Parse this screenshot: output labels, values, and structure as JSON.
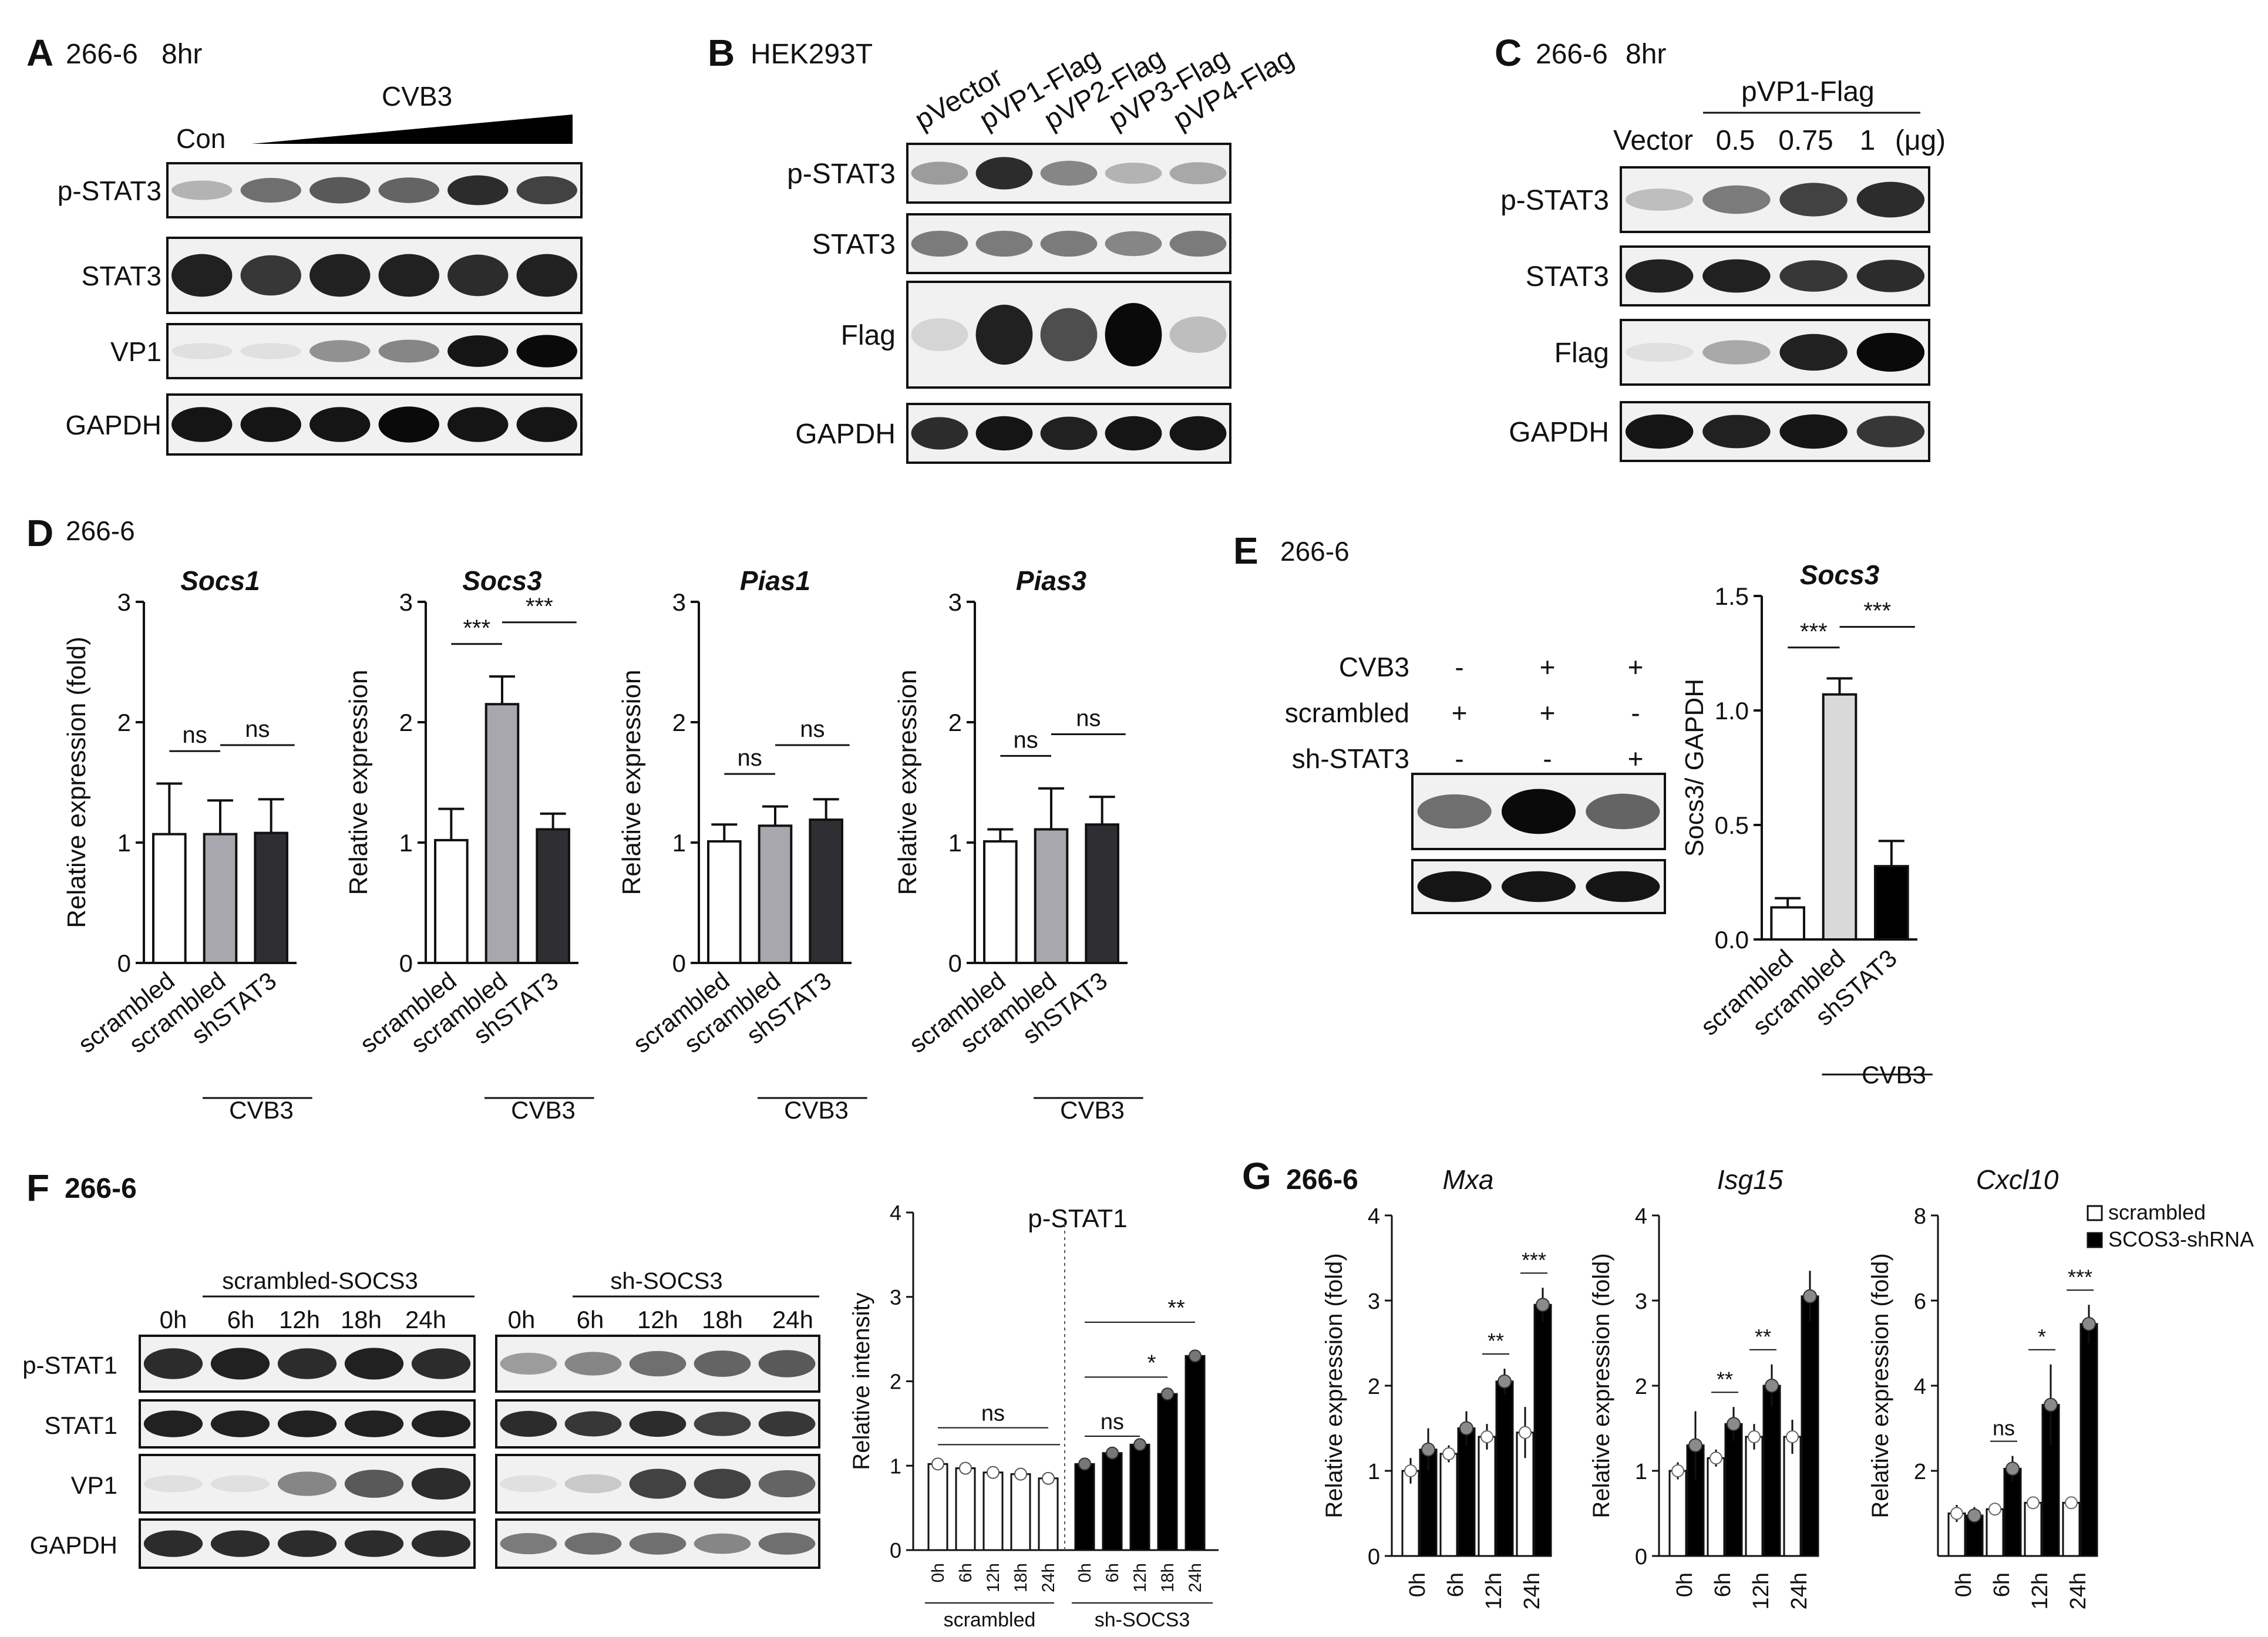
{
  "panelA": {
    "letter": "A",
    "cell": "266-6",
    "time": "8hr",
    "virus": "CVB3",
    "con": "Con",
    "rows": [
      "p-STAT3",
      "STAT3",
      "VP1",
      "GAPDH"
    ],
    "bands": [
      [
        0.25,
        0.55,
        0.65,
        0.6,
        0.85,
        0.75
      ],
      [
        0.9,
        0.8,
        0.9,
        0.9,
        0.85,
        0.9
      ],
      [
        0.05,
        0.05,
        0.4,
        0.45,
        0.95,
        1.0
      ],
      [
        0.95,
        0.95,
        0.95,
        1.0,
        0.95,
        0.95
      ]
    ]
  },
  "panelB": {
    "letter": "B",
    "cell": "HEK293T",
    "lanes": [
      "pVector",
      "pVP1-Flag",
      "pVP2-Flag",
      "pVP3-Flag",
      "pVP4-Flag"
    ],
    "rows": [
      "p-STAT3",
      "STAT3",
      "Flag",
      "GAPDH"
    ],
    "bands": [
      [
        0.35,
        0.85,
        0.45,
        0.25,
        0.3
      ],
      [
        0.5,
        0.5,
        0.5,
        0.45,
        0.5
      ],
      [
        0.1,
        0.9,
        0.7,
        1.0,
        0.2
      ],
      [
        0.85,
        0.95,
        0.9,
        0.95,
        0.95
      ]
    ]
  },
  "panelC": {
    "letter": "C",
    "cell": "266-6",
    "time": "8hr",
    "group": "pVP1-Flag",
    "lanes": [
      "Vector",
      "0.5",
      "0.75",
      "1",
      "(μg)"
    ],
    "rows": [
      "p-STAT3",
      "STAT3",
      "Flag",
      "GAPDH"
    ],
    "bands": [
      [
        0.2,
        0.5,
        0.75,
        0.85
      ],
      [
        0.9,
        0.9,
        0.8,
        0.85
      ],
      [
        0.05,
        0.3,
        0.9,
        1.0
      ],
      [
        0.95,
        0.9,
        0.95,
        0.8
      ]
    ]
  },
  "panelD": {
    "letter": "D",
    "cell": "266-6",
    "groups": [
      "scrambled",
      "scrambled",
      "shSTAT3"
    ],
    "cvb3": "CVB3",
    "charts": [
      {
        "title": "Socs1",
        "ylabel": "Relative expression (fold)",
        "values": [
          1.07,
          1.07,
          1.08
        ],
        "errors": [
          0.42,
          0.28,
          0.28
        ],
        "ylim": [
          0,
          3
        ],
        "yticks": [
          "0",
          "1",
          "2",
          "3"
        ],
        "sig": [
          "ns",
          "ns"
        ]
      },
      {
        "title": "Socs3",
        "ylabel": "Relative expression",
        "values": [
          1.02,
          2.15,
          1.11
        ],
        "errors": [
          0.26,
          0.23,
          0.13
        ],
        "ylim": [
          0,
          3
        ],
        "yticks": [
          "0",
          "1",
          "2",
          "3"
        ],
        "sig": [
          "***",
          "***"
        ]
      },
      {
        "title": "Pias1",
        "ylabel": "Relative expression",
        "values": [
          1.01,
          1.14,
          1.19
        ],
        "errors": [
          0.14,
          0.16,
          0.17
        ],
        "ylim": [
          0,
          3
        ],
        "yticks": [
          "0",
          "1",
          "2",
          "3"
        ],
        "sig": [
          "ns",
          "ns"
        ]
      },
      {
        "title": "Pias3",
        "ylabel": "Relative expression",
        "values": [
          1.01,
          1.11,
          1.15
        ],
        "errors": [
          0.1,
          0.34,
          0.23
        ],
        "ylim": [
          0,
          3
        ],
        "yticks": [
          "0",
          "1",
          "2",
          "3"
        ],
        "sig": [
          "ns",
          "ns"
        ]
      }
    ]
  },
  "panelE": {
    "letter": "E",
    "cell": "266-6",
    "rows": [
      {
        "label": "CVB3",
        "marks": [
          "-",
          "+",
          "+"
        ]
      },
      {
        "label": "scrambled",
        "marks": [
          "+",
          "+",
          "-"
        ]
      },
      {
        "label": "sh-STAT3",
        "marks": [
          "-",
          "-",
          "+"
        ]
      }
    ],
    "bands": [
      [
        0.55,
        1.0,
        0.6
      ],
      [
        0.95,
        0.95,
        0.95
      ]
    ],
    "chart": {
      "title": "Socs3",
      "ylabel": "Socs3/ GAPDH",
      "values": [
        0.14,
        1.07,
        0.32
      ],
      "errors": [
        0.04,
        0.07,
        0.11
      ],
      "ylim": [
        0,
        1.5
      ],
      "yticks": [
        "0.0",
        "0.5",
        "1.0",
        "1.5"
      ],
      "groups": [
        "scrambled",
        "scrambled",
        "shSTAT3"
      ],
      "cvb3": "CVB3",
      "sig": [
        "***",
        "***"
      ]
    }
  },
  "panelF": {
    "letter": "F",
    "cell": "266-6",
    "groupA": "scrambled-SOCS3",
    "groupB": "sh-SOCS3",
    "times": [
      "0h",
      "6h",
      "12h",
      "18h",
      "24h"
    ],
    "rows": [
      "p-STAT1",
      "STAT1",
      "VP1",
      "GAPDH"
    ],
    "bandsA": [
      [
        0.85,
        0.9,
        0.85,
        0.9,
        0.85
      ],
      [
        0.9,
        0.9,
        0.9,
        0.9,
        0.9
      ],
      [
        0.05,
        0.05,
        0.45,
        0.65,
        0.85
      ],
      [
        0.85,
        0.85,
        0.85,
        0.85,
        0.85
      ]
    ],
    "bandsB": [
      [
        0.35,
        0.45,
        0.55,
        0.6,
        0.65
      ],
      [
        0.85,
        0.8,
        0.85,
        0.75,
        0.8
      ],
      [
        0.05,
        0.15,
        0.75,
        0.75,
        0.6
      ],
      [
        0.5,
        0.55,
        0.55,
        0.45,
        0.55
      ]
    ],
    "chart": {
      "title": "p-STAT1",
      "ylabel": "Relative intensity",
      "ylim": [
        0,
        4
      ],
      "yticks": [
        "0",
        "1",
        "2",
        "3",
        "4"
      ],
      "scrambled": [
        1.02,
        0.97,
        0.92,
        0.9,
        0.85
      ],
      "sh": [
        1.02,
        1.15,
        1.25,
        1.85,
        2.3
      ],
      "groupLabels": [
        "scrambled",
        "sh-SOCS3"
      ],
      "sig": [
        "ns",
        "ns",
        "*",
        "**"
      ]
    }
  },
  "panelG": {
    "letter": "G",
    "cell": "266-6",
    "times": [
      "0h",
      "6h",
      "12h",
      "24h"
    ],
    "ylabel": "Relative expression (fold)",
    "legend": [
      "scrambled",
      "SCOS3-shRNA"
    ],
    "charts": [
      {
        "title": "Mxa",
        "ylim": [
          0,
          4
        ],
        "yticks": [
          "0",
          "1",
          "2",
          "3",
          "4"
        ],
        "scrambled": [
          1.0,
          1.2,
          1.4,
          1.45
        ],
        "sh": [
          1.25,
          1.5,
          2.05,
          2.95
        ],
        "errA": [
          0.15,
          0.1,
          0.15,
          0.3
        ],
        "errB": [
          0.25,
          0.2,
          0.15,
          0.2
        ],
        "sig": [
          null,
          null,
          "**",
          "***"
        ]
      },
      {
        "title": "Isg15",
        "ylim": [
          0,
          4
        ],
        "yticks": [
          "0",
          "1",
          "2",
          "3",
          "4"
        ],
        "scrambled": [
          1.0,
          1.15,
          1.4,
          1.4
        ],
        "sh": [
          1.3,
          1.55,
          2.0,
          3.05
        ],
        "errA": [
          0.1,
          0.1,
          0.15,
          0.2
        ],
        "errB": [
          0.4,
          0.2,
          0.25,
          0.3
        ],
        "sig": [
          null,
          "**",
          "**",
          null
        ]
      },
      {
        "title": "Cxcl10",
        "ylim": [
          0,
          8
        ],
        "yticks": [
          "2",
          "4",
          "6",
          "8"
        ],
        "scrambled": [
          1.0,
          1.1,
          1.25,
          1.25
        ],
        "sh": [
          0.95,
          2.05,
          3.55,
          5.45
        ],
        "errA": [
          0.2,
          0.15,
          0.1,
          0.1
        ],
        "errB": [
          0.2,
          0.3,
          0.95,
          0.45
        ],
        "sig": [
          null,
          "ns",
          "*",
          "***"
        ]
      }
    ]
  }
}
